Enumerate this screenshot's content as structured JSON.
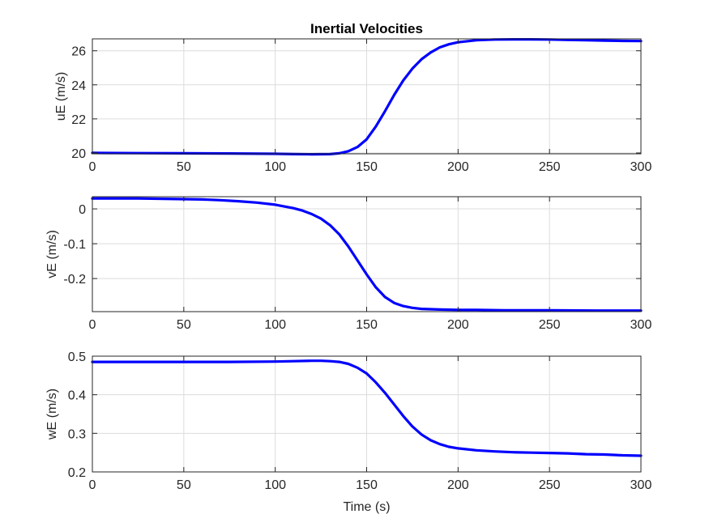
{
  "figure": {
    "title": "Inertial Velocities",
    "xlabel": "Time (s)"
  },
  "chart_data": [
    {
      "type": "line",
      "title": "Inertial Velocities",
      "xlabel": "",
      "ylabel": "uE (m/s)",
      "xlim": [
        0,
        300
      ],
      "ylim": [
        19.95,
        26.7
      ],
      "xticks": [
        0,
        50,
        100,
        150,
        200,
        250,
        300
      ],
      "yticks": [
        20,
        22,
        24,
        26
      ],
      "grid": true,
      "color": "#0000ff",
      "series": [
        {
          "x": [
            0,
            25,
            50,
            75,
            100,
            110,
            120,
            130,
            135,
            140,
            145,
            150,
            155,
            160,
            165,
            170,
            175,
            180,
            185,
            190,
            195,
            200,
            210,
            220,
            230,
            240,
            250,
            260,
            270,
            280,
            290,
            300
          ],
          "y": [
            20.0,
            19.99,
            19.98,
            19.97,
            19.95,
            19.93,
            19.92,
            19.93,
            19.98,
            20.1,
            20.35,
            20.8,
            21.55,
            22.45,
            23.4,
            24.25,
            24.95,
            25.5,
            25.9,
            26.2,
            26.38,
            26.5,
            26.62,
            26.66,
            26.67,
            26.67,
            26.66,
            26.64,
            26.62,
            26.6,
            26.58,
            26.57
          ]
        }
      ]
    },
    {
      "type": "line",
      "xlabel": "",
      "ylabel": "vE (m/s)",
      "xlim": [
        0,
        300
      ],
      "ylim": [
        -0.295,
        0.035
      ],
      "xticks": [
        0,
        50,
        100,
        150,
        200,
        250,
        300
      ],
      "yticks": [
        0,
        -0.1,
        -0.2
      ],
      "grid": true,
      "color": "#0000ff",
      "series": [
        {
          "x": [
            0,
            25,
            50,
            60,
            70,
            80,
            90,
            100,
            110,
            115,
            120,
            125,
            130,
            135,
            140,
            145,
            150,
            155,
            160,
            165,
            170,
            175,
            180,
            185,
            190,
            200,
            210,
            225,
            250,
            275,
            300
          ],
          "y": [
            0.03,
            0.03,
            0.028,
            0.027,
            0.025,
            0.022,
            0.018,
            0.012,
            0.002,
            -0.005,
            -0.015,
            -0.028,
            -0.047,
            -0.073,
            -0.108,
            -0.148,
            -0.188,
            -0.225,
            -0.253,
            -0.27,
            -0.279,
            -0.284,
            -0.287,
            -0.288,
            -0.289,
            -0.29,
            -0.29,
            -0.291,
            -0.291,
            -0.292,
            -0.292
          ]
        }
      ]
    },
    {
      "type": "line",
      "xlabel": "Time (s)",
      "ylabel": "wE (m/s)",
      "xlim": [
        0,
        300
      ],
      "ylim": [
        0.2,
        0.5
      ],
      "xticks": [
        0,
        50,
        100,
        150,
        200,
        250,
        300
      ],
      "yticks": [
        0.2,
        0.3,
        0.4,
        0.5
      ],
      "grid": true,
      "color": "#0000ff",
      "series": [
        {
          "x": [
            0,
            25,
            50,
            75,
            100,
            110,
            120,
            125,
            130,
            135,
            140,
            145,
            150,
            155,
            160,
            165,
            170,
            175,
            180,
            185,
            190,
            195,
            200,
            210,
            220,
            230,
            240,
            250,
            260,
            270,
            280,
            290,
            300
          ],
          "y": [
            0.485,
            0.485,
            0.485,
            0.485,
            0.486,
            0.487,
            0.488,
            0.488,
            0.487,
            0.485,
            0.48,
            0.47,
            0.455,
            0.432,
            0.405,
            0.375,
            0.345,
            0.318,
            0.297,
            0.282,
            0.272,
            0.265,
            0.261,
            0.256,
            0.253,
            0.251,
            0.25,
            0.249,
            0.248,
            0.246,
            0.245,
            0.243,
            0.242
          ]
        }
      ]
    }
  ]
}
